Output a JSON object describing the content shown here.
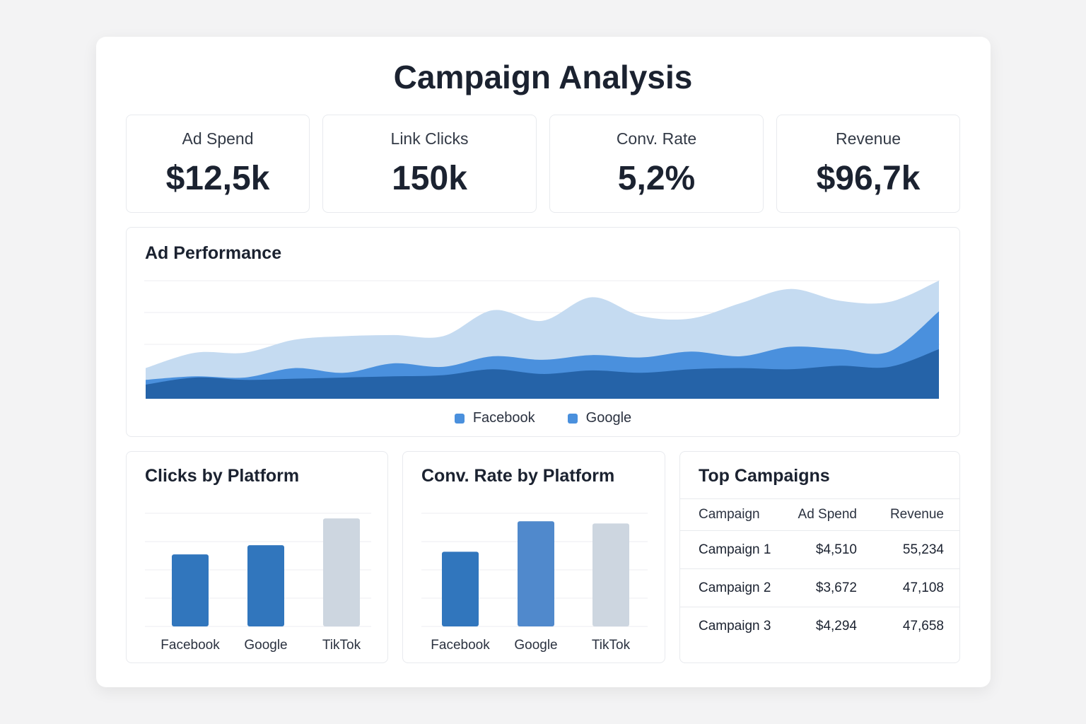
{
  "title": "Campaign Analysis",
  "kpis": [
    {
      "label": "Ad Spend",
      "value": "$12,5k"
    },
    {
      "label": "Link Clicks",
      "value": "150k"
    },
    {
      "label": "Conv. Rate",
      "value": "5,2%"
    },
    {
      "label": "Revenue",
      "value": "$96,7k"
    }
  ],
  "colors": {
    "area_light": "#c5dbf1",
    "area_mid": "#4a90dd",
    "area_dark": "#2563a8",
    "bar_blue": "#3176bd",
    "bar_blue_light": "#5089cc",
    "bar_grey": "#cdd6e0"
  },
  "chart_data": [
    {
      "type": "area",
      "title": "Ad Performance",
      "legend": [
        "Facebook",
        "Google"
      ],
      "legend_colors": [
        "#4a90dd",
        "#4a90dd"
      ],
      "legend_position": "bottom",
      "grid": true,
      "ylim": [
        0,
        100
      ],
      "x": [
        0,
        1,
        2,
        3,
        4,
        5,
        6,
        7,
        8,
        9,
        10,
        11,
        12,
        13,
        14,
        15,
        16
      ],
      "series": [
        {
          "values": [
            12,
            18,
            16,
            17,
            18,
            19,
            20,
            25,
            21,
            24,
            22,
            25,
            26,
            25,
            28,
            27,
            42
          ]
        },
        {
          "values": [
            16,
            19,
            18,
            26,
            22,
            30,
            27,
            36,
            33,
            37,
            35,
            40,
            36,
            44,
            42,
            40,
            74
          ]
        },
        {
          "values": [
            26,
            39,
            39,
            50,
            53,
            54,
            53,
            75,
            66,
            86,
            70,
            68,
            81,
            93,
            83,
            82,
            100
          ]
        }
      ]
    },
    {
      "type": "bar",
      "title": "Clicks by Platform",
      "categories": [
        "Facebook",
        "Google",
        "TikTok"
      ],
      "values": [
        70,
        79,
        105
      ],
      "ylim": [
        0,
        110
      ],
      "grid": true,
      "colors": [
        "#3176bd",
        "#3176bd",
        "#cdd6e0"
      ]
    },
    {
      "type": "bar",
      "title": "Conv. Rate by Platform",
      "categories": [
        "Facebook",
        "Google",
        "TikTok"
      ],
      "values": [
        66,
        93,
        91
      ],
      "ylim": [
        0,
        100
      ],
      "grid": true,
      "colors": [
        "#3176bd",
        "#5089cc",
        "#cdd6e0"
      ]
    },
    {
      "type": "table",
      "title": "Top Campaigns",
      "columns": [
        "Campaign",
        "Ad Spend",
        "Revenue"
      ],
      "rows": [
        [
          "Campaign 1",
          "$4,510",
          "55,234"
        ],
        [
          "Campaign 2",
          "$3,672",
          "47,108"
        ],
        [
          "Campaign 3",
          "$4,294",
          "47,658"
        ]
      ]
    }
  ]
}
